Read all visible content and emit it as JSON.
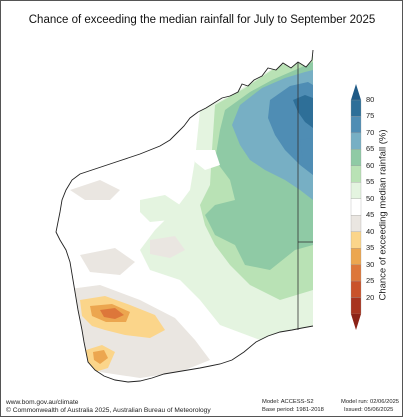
{
  "title": "Chance of exceeding the median rainfall for July to September 2025",
  "colorbar": {
    "label": "Chance of exceeding median rainfall (%)",
    "ticks": [
      "80",
      "75",
      "70",
      "65",
      "60",
      "55",
      "50",
      "45",
      "40",
      "35",
      "30",
      "25",
      "20"
    ],
    "colors": [
      "#2e6f98",
      "#4f8db4",
      "#77afc4",
      "#8fcaa5",
      "#b9e2b5",
      "#e4f4e0",
      "#ffffff",
      "#eae6e1",
      "#fbd58a",
      "#eca64f",
      "#dd773a",
      "#c9522a",
      "#a8341f"
    ]
  },
  "footer": {
    "website": "www.bom.gov.au/climate",
    "copyright": "© Commonwealth of Australia 2025, Australian Bureau of Meteorology",
    "model": "Model: ACCESS-S2",
    "base_period": "Base period: 1981-2018",
    "model_run": "Model run: 02/06/2025",
    "issued": "Issued: 05/06/2025"
  }
}
